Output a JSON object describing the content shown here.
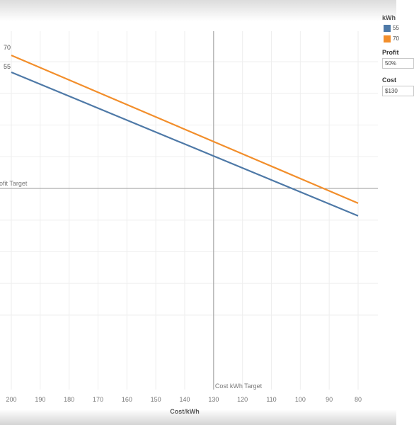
{
  "chart_data": {
    "type": "line",
    "xlabel": "Cost/kWh",
    "x_ticks": [
      200,
      190,
      180,
      170,
      160,
      150,
      140,
      130,
      120,
      110,
      100,
      90,
      80
    ],
    "x_reversed": true,
    "grid": true,
    "series": [
      {
        "name": "55",
        "color": "#4e79a7",
        "x": [
          200,
          80
        ],
        "y": [
          55,
          -13
        ]
      },
      {
        "name": "70",
        "color": "#f28e2b",
        "x": [
          200,
          80
        ],
        "y": [
          63,
          -7
        ]
      }
    ],
    "reference_lines": [
      {
        "axis": "y",
        "value": 0,
        "label": "Profit Target"
      },
      {
        "axis": "x",
        "value": 130,
        "label": "Cost kWh Target"
      }
    ]
  },
  "legend": {
    "title": "kWh",
    "items": [
      {
        "label": "55",
        "color": "#4e79a7"
      },
      {
        "label": "70",
        "color": "#f28e2b"
      }
    ]
  },
  "parameters": {
    "profit": {
      "label": "Profit",
      "value": "50%"
    },
    "cost": {
      "label": "Cost",
      "value": "$130"
    }
  }
}
